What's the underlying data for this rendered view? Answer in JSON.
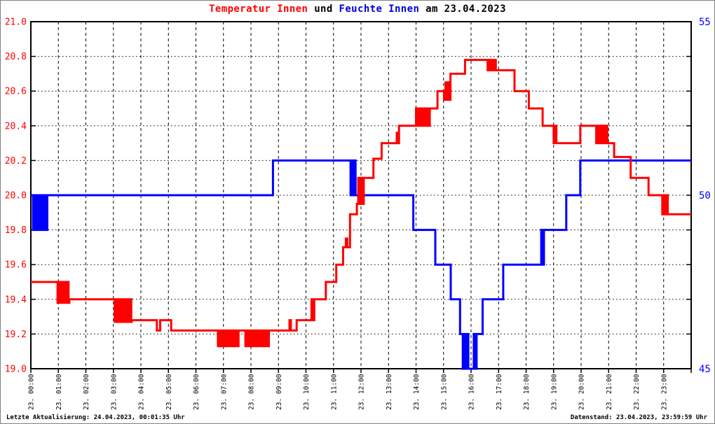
{
  "title": {
    "temp": "Temperatur Innen",
    "mid": " und ",
    "hum": "Feuchte Innen",
    "tail": " am 23.04.2023"
  },
  "footer": {
    "left": "Letzte Aktualisierung: 24.04.2023, 00:01:35 Uhr",
    "right": "Datenstand: 23.04.2023, 23:59:59 Uhr"
  },
  "colors": {
    "temperature": "#ff0000",
    "humidity": "#0000ff",
    "grid": "#000000",
    "axis": "#000000",
    "background": "#ffffff"
  },
  "chart_data": {
    "type": "line",
    "title": "Temperatur Innen und Feuchte Innen am 23.04.2023",
    "legend_position": "none",
    "grid": true,
    "x_labels": [
      "23. 00:00",
      "23. 01:00",
      "23. 02:00",
      "23. 03:00",
      "23. 04:00",
      "23. 05:00",
      "23. 06:00",
      "23. 07:00",
      "23. 08:00",
      "23. 09:00",
      "23. 10:00",
      "23. 11:00",
      "23. 12:00",
      "23. 13:00",
      "23. 14:00",
      "23. 15:00",
      "23. 16:00",
      "23. 17:00",
      "23. 18:00",
      "23. 19:00",
      "23. 20:00",
      "23. 21:00",
      "23. 22:00",
      "23. 23:00"
    ],
    "x_hours": 24,
    "y_left": {
      "min": 19.0,
      "max": 21.0,
      "step": 0.2,
      "color": "#ff0000",
      "labels": [
        "21.0",
        "20.8",
        "20.6",
        "20.4",
        "20.2",
        "20.0",
        "19.8",
        "19.6",
        "19.4",
        "19.2",
        "19.0"
      ]
    },
    "y_right": {
      "min": 45,
      "max": 55,
      "step": 1,
      "color": "#0000ff",
      "ticks": [
        55,
        50,
        45
      ]
    },
    "series": [
      {
        "name": "Temperatur Innen",
        "axis": "left",
        "color": "#ff0000",
        "segments": [
          {
            "h0": 0.0,
            "h1": 0.97,
            "v": 19.5
          },
          {
            "h0": 0.97,
            "h1": 1.4,
            "osc": [
              19.38,
              19.5
            ]
          },
          {
            "h0": 1.4,
            "h1": 3.05,
            "v": 19.4
          },
          {
            "h0": 3.05,
            "h1": 3.67,
            "osc": [
              19.27,
              19.4
            ]
          },
          {
            "h0": 3.67,
            "h1": 4.58,
            "v": 19.28
          },
          {
            "h0": 4.58,
            "h1": 4.7,
            "v": 19.22
          },
          {
            "h0": 4.7,
            "h1": 5.1,
            "v": 19.28
          },
          {
            "h0": 5.1,
            "h1": 6.8,
            "v": 19.22
          },
          {
            "h0": 6.8,
            "h1": 7.55,
            "osc": [
              19.13,
              19.22
            ]
          },
          {
            "h0": 7.55,
            "h1": 7.8,
            "v": 19.22
          },
          {
            "h0": 7.8,
            "h1": 8.65,
            "osc": [
              19.13,
              19.22
            ]
          },
          {
            "h0": 8.65,
            "h1": 9.35,
            "v": 19.22
          },
          {
            "h0": 9.35,
            "h1": 9.48,
            "osc": [
              19.22,
              19.28
            ]
          },
          {
            "h0": 9.48,
            "h1": 9.66,
            "v": 19.22
          },
          {
            "h0": 9.66,
            "h1": 10.15,
            "v": 19.28
          },
          {
            "h0": 10.15,
            "h1": 10.35,
            "osc": [
              19.28,
              19.4
            ]
          },
          {
            "h0": 10.35,
            "h1": 10.72,
            "v": 19.4
          },
          {
            "h0": 10.72,
            "h1": 11.1,
            "v": 19.5
          },
          {
            "h0": 11.1,
            "h1": 11.35,
            "v": 19.6
          },
          {
            "h0": 11.35,
            "h1": 11.45,
            "v": 19.7
          },
          {
            "h0": 11.45,
            "h1": 11.5,
            "v": 19.75
          },
          {
            "h0": 11.5,
            "h1": 11.6,
            "v": 19.7
          },
          {
            "h0": 11.6,
            "h1": 11.85,
            "v": 19.89
          },
          {
            "h0": 11.85,
            "h1": 12.1,
            "osc": [
              19.95,
              20.1
            ]
          },
          {
            "h0": 12.1,
            "h1": 12.45,
            "v": 20.1
          },
          {
            "h0": 12.45,
            "h1": 12.75,
            "v": 20.21
          },
          {
            "h0": 12.75,
            "h1": 13.25,
            "v": 20.3
          },
          {
            "h0": 13.25,
            "h1": 13.38,
            "osc": [
              20.3,
              20.36
            ]
          },
          {
            "h0": 13.38,
            "h1": 13.95,
            "v": 20.4
          },
          {
            "h0": 13.95,
            "h1": 14.5,
            "osc": [
              20.4,
              20.5
            ]
          },
          {
            "h0": 14.5,
            "h1": 14.78,
            "v": 20.5
          },
          {
            "h0": 14.78,
            "h1": 15.02,
            "v": 20.6
          },
          {
            "h0": 15.02,
            "h1": 15.25,
            "osc": [
              20.55,
              20.65
            ]
          },
          {
            "h0": 15.25,
            "h1": 15.78,
            "v": 20.7
          },
          {
            "h0": 15.78,
            "h1": 16.6,
            "v": 20.78
          },
          {
            "h0": 16.6,
            "h1": 16.9,
            "osc": [
              20.72,
              20.78
            ]
          },
          {
            "h0": 16.9,
            "h1": 17.58,
            "v": 20.72
          },
          {
            "h0": 17.58,
            "h1": 18.1,
            "v": 20.6
          },
          {
            "h0": 18.1,
            "h1": 18.6,
            "v": 20.5
          },
          {
            "h0": 18.6,
            "h1": 19.0,
            "v": 20.4
          },
          {
            "h0": 19.0,
            "h1": 19.15,
            "osc": [
              20.3,
              20.4
            ]
          },
          {
            "h0": 19.15,
            "h1": 19.97,
            "v": 20.3
          },
          {
            "h0": 19.97,
            "h1": 20.55,
            "v": 20.4
          },
          {
            "h0": 20.55,
            "h1": 20.95,
            "osc": [
              20.3,
              20.4
            ]
          },
          {
            "h0": 20.95,
            "h1": 21.2,
            "v": 20.3
          },
          {
            "h0": 21.2,
            "h1": 21.8,
            "v": 20.22
          },
          {
            "h0": 21.8,
            "h1": 22.45,
            "v": 20.1
          },
          {
            "h0": 22.45,
            "h1": 22.95,
            "v": 20.0
          },
          {
            "h0": 22.95,
            "h1": 23.15,
            "osc": [
              19.89,
              20.0
            ]
          },
          {
            "h0": 23.15,
            "h1": 24.0,
            "v": 19.89
          }
        ]
      },
      {
        "name": "Feuchte Innen",
        "axis": "right",
        "color": "#0000ff",
        "segments": [
          {
            "h0": 0.0,
            "h1": 0.08,
            "v": 50
          },
          {
            "h0": 0.08,
            "h1": 0.6,
            "osc": [
              49,
              50
            ]
          },
          {
            "h0": 0.6,
            "h1": 8.8,
            "v": 50
          },
          {
            "h0": 8.8,
            "h1": 11.62,
            "v": 51
          },
          {
            "h0": 11.62,
            "h1": 11.8,
            "osc": [
              50,
              51
            ]
          },
          {
            "h0": 11.8,
            "h1": 13.9,
            "v": 50
          },
          {
            "h0": 13.9,
            "h1": 14.7,
            "v": 49
          },
          {
            "h0": 14.7,
            "h1": 15.26,
            "v": 48
          },
          {
            "h0": 15.26,
            "h1": 15.6,
            "v": 47
          },
          {
            "h0": 15.6,
            "h1": 15.7,
            "v": 46
          },
          {
            "h0": 15.7,
            "h1": 15.9,
            "osc": [
              45,
              46
            ]
          },
          {
            "h0": 15.9,
            "h1": 16.05,
            "v": 45
          },
          {
            "h0": 16.05,
            "h1": 16.2,
            "osc": [
              45,
              46
            ]
          },
          {
            "h0": 16.2,
            "h1": 16.42,
            "v": 46
          },
          {
            "h0": 16.42,
            "h1": 17.17,
            "v": 47
          },
          {
            "h0": 17.17,
            "h1": 18.5,
            "v": 48
          },
          {
            "h0": 18.5,
            "h1": 18.65,
            "osc": [
              48,
              49
            ]
          },
          {
            "h0": 18.65,
            "h1": 19.46,
            "v": 49
          },
          {
            "h0": 19.46,
            "h1": 19.97,
            "v": 50
          },
          {
            "h0": 19.97,
            "h1": 24.0,
            "v": 51
          }
        ]
      }
    ]
  }
}
